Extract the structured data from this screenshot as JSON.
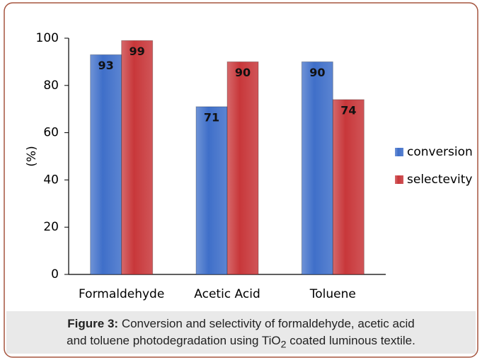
{
  "chart_data": {
    "type": "bar",
    "ylabel": "(%)",
    "categories": [
      "Formaldehyde",
      "Acetic Acid",
      "Toluene"
    ],
    "series": [
      {
        "name": "conversion",
        "color": "#3f6fc9",
        "values": [
          93,
          71,
          90
        ]
      },
      {
        "name": "selectevity",
        "color": "#c8373a",
        "values": [
          99,
          90,
          74
        ]
      }
    ],
    "ylim": [
      0,
      100
    ],
    "yticks": [
      0,
      20,
      40,
      60,
      80,
      100
    ],
    "grid": false,
    "legend": "right",
    "caption": {
      "label": "Figure 3:",
      "line1": "Conversion and selectivity of formaldehyde, acetic acid",
      "line2": "and toluene photodegradation using TiO",
      "sub": "2",
      "line2_end": " coated luminous textile."
    }
  }
}
